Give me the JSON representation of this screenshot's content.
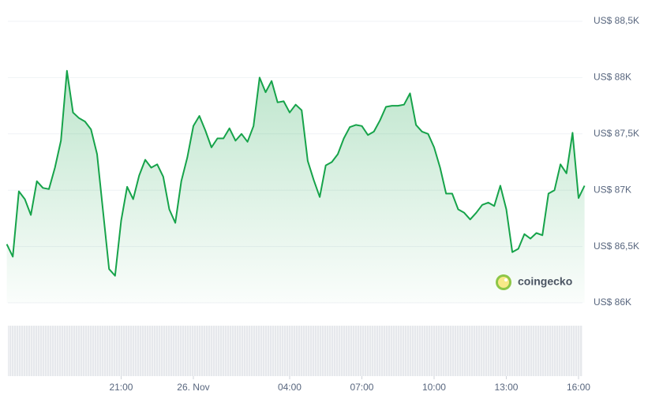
{
  "chart_data": {
    "type": "line",
    "x": [
      -7.75,
      -7.5,
      -7.25,
      -7,
      -6.75,
      -6.5,
      -6.25,
      -6,
      -5.75,
      -5.5,
      -5.25,
      -5,
      -4.75,
      -4.5,
      -4.25,
      -4,
      -3.75,
      -3.5,
      -3.25,
      -3,
      -2.75,
      -2.5,
      -2.25,
      -2,
      -1.75,
      -1.5,
      -1.25,
      -1,
      -0.75,
      -0.5,
      -0.25,
      0,
      0.25,
      0.5,
      0.75,
      1,
      1.25,
      1.5,
      1.75,
      2,
      2.25,
      2.5,
      2.75,
      3,
      3.25,
      3.5,
      3.75,
      4,
      4.25,
      4.5,
      4.75,
      5,
      5.25,
      5.5,
      5.75,
      6,
      6.25,
      6.5,
      6.75,
      7,
      7.25,
      7.5,
      7.75,
      8,
      8.25,
      8.5,
      8.75,
      9,
      9.25,
      9.5,
      9.75,
      10,
      10.25,
      10.5,
      10.75,
      11,
      11.25,
      11.5,
      11.75,
      12,
      12.25,
      12.5,
      12.75,
      13,
      13.25,
      13.5,
      13.75,
      14,
      14.25,
      14.5,
      14.75,
      15,
      15.25,
      15.5,
      15.75,
      16,
      16.25
    ],
    "series": [
      {
        "color": "#16a34a",
        "values": [
          86520,
          86410,
          86990,
          86920,
          86780,
          87080,
          87020,
          87010,
          87200,
          87440,
          88060,
          87690,
          87640,
          87610,
          87540,
          87320,
          86810,
          86300,
          86240,
          86730,
          87030,
          86920,
          87130,
          87270,
          87200,
          87230,
          87120,
          86830,
          86710,
          87080,
          87290,
          87570,
          87660,
          87530,
          87380,
          87460,
          87460,
          87550,
          87440,
          87500,
          87430,
          87570,
          88000,
          87870,
          87970,
          87780,
          87790,
          87690,
          87760,
          87710,
          87260,
          87090,
          86940,
          87220,
          87250,
          87320,
          87460,
          87560,
          87580,
          87570,
          87490,
          87520,
          87620,
          87740,
          87750,
          87750,
          87760,
          87860,
          87580,
          87520,
          87500,
          87380,
          87200,
          86970,
          86970,
          86830,
          86800,
          86740,
          86800,
          86870,
          86890,
          86860,
          87040,
          86830,
          86450,
          86480,
          86610,
          86570,
          86620,
          86600,
          86970,
          87000,
          87230,
          87150,
          87510,
          86930,
          87040
        ]
      }
    ],
    "xlim": [
      -7.75,
      16.25
    ],
    "xticks": [
      {
        "value": -3,
        "label": "21:00"
      },
      {
        "value": 0,
        "label": "26. Nov"
      },
      {
        "value": 4,
        "label": "04:00"
      },
      {
        "value": 7,
        "label": "07:00"
      },
      {
        "value": 10,
        "label": "10:00"
      },
      {
        "value": 13,
        "label": "13:00"
      },
      {
        "value": 16,
        "label": "16:00"
      }
    ],
    "ylim": [
      86000,
      88500
    ],
    "yticks": [
      {
        "value": 86000,
        "label": "US$ 86K"
      },
      {
        "value": 86500,
        "label": "US$ 86,5K"
      },
      {
        "value": 87000,
        "label": "US$ 87K"
      },
      {
        "value": 87500,
        "label": "US$ 87,5K"
      },
      {
        "value": 88000,
        "label": "US$ 88K"
      },
      {
        "value": 88500,
        "label": "US$ 88,5K"
      }
    ],
    "grid": true,
    "watermark": "coingecko"
  }
}
